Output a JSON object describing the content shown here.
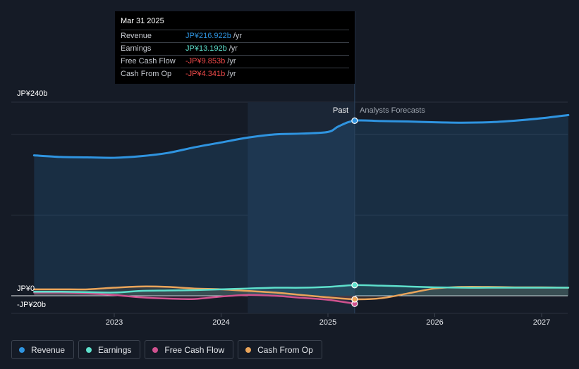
{
  "chart_data": {
    "type": "line",
    "y_top_label": "JP¥240b",
    "y_zero_label": "JP¥0",
    "y_neg_label": "-JP¥20b",
    "ylim": [
      -20,
      240
    ],
    "x_ticks": [
      "2023",
      "2024",
      "2025",
      "2026",
      "2027"
    ],
    "past_label": "Past",
    "forecast_label": "Analysts Forecasts",
    "divider_x": 2025.25,
    "shade_start_x": 2024.25,
    "series": [
      {
        "name": "Revenue",
        "color": "#2f94e0",
        "x": [
          2022.25,
          2022.5,
          2022.75,
          2023.0,
          2023.25,
          2023.5,
          2023.75,
          2024.0,
          2024.25,
          2024.5,
          2024.75,
          2025.0,
          2025.1,
          2025.25,
          2025.5,
          2025.75,
          2026.0,
          2026.25,
          2026.5,
          2026.75,
          2027.0,
          2027.25
        ],
        "values": [
          174,
          172,
          171.5,
          171,
          173,
          177,
          184,
          190,
          196,
          200,
          201,
          203,
          210,
          217,
          216.5,
          216,
          215,
          214.5,
          215,
          217,
          220,
          224
        ]
      },
      {
        "name": "Earnings",
        "color": "#5ee0cc",
        "x": [
          2022.25,
          2022.5,
          2022.75,
          2023.0,
          2023.25,
          2023.5,
          2023.75,
          2024.0,
          2024.25,
          2024.5,
          2024.75,
          2025.0,
          2025.25,
          2025.5,
          2025.75,
          2026.0,
          2026.25,
          2026.5,
          2026.75,
          2027.0,
          2027.25
        ],
        "values": [
          5,
          5,
          4.5,
          4,
          6,
          6.5,
          7,
          8,
          9,
          10,
          10,
          11,
          13.192,
          12.5,
          11.5,
          10.5,
          10,
          10,
          10,
          10,
          10
        ]
      },
      {
        "name": "Free Cash Flow",
        "color": "#d0528f",
        "x": [
          2022.25,
          2022.5,
          2022.75,
          2023.0,
          2023.25,
          2023.5,
          2023.75,
          2024.0,
          2024.25,
          2024.5,
          2024.75,
          2025.0,
          2025.25
        ],
        "values": [
          4,
          4,
          3,
          1,
          -2,
          -3.5,
          -4,
          -1,
          1,
          0,
          -2.5,
          -5,
          -9.853
        ]
      },
      {
        "name": "Cash From Op",
        "color": "#e9a45a",
        "x": [
          2022.25,
          2022.5,
          2022.75,
          2023.0,
          2023.25,
          2023.5,
          2023.75,
          2024.0,
          2024.25,
          2024.5,
          2024.75,
          2025.0,
          2025.25,
          2025.5,
          2025.75,
          2026.0,
          2026.25,
          2026.5,
          2026.75,
          2027.0,
          2027.25
        ],
        "values": [
          8,
          8,
          8,
          10,
          11.5,
          11,
          9,
          8,
          6,
          4,
          1,
          -2,
          -4.341,
          -3,
          3,
          9,
          11,
          11,
          10.5,
          10.5,
          10
        ]
      }
    ],
    "highlight_x": 2025.25
  },
  "tooltip": {
    "date": "Mar 31 2025",
    "rows": [
      {
        "label": "Revenue",
        "value": "JP¥216.922b",
        "unit": "/yr",
        "color": "#2f94e0"
      },
      {
        "label": "Earnings",
        "value": "JP¥13.192b",
        "unit": "/yr",
        "color": "#5ee0cc"
      },
      {
        "label": "Free Cash Flow",
        "value": "-JP¥9.853b",
        "unit": "/yr",
        "color": "#f04a4a"
      },
      {
        "label": "Cash From Op",
        "value": "-JP¥4.341b",
        "unit": "/yr",
        "color": "#f04a4a"
      }
    ]
  },
  "legend": [
    {
      "label": "Revenue",
      "color": "#2f94e0"
    },
    {
      "label": "Earnings",
      "color": "#5ee0cc"
    },
    {
      "label": "Free Cash Flow",
      "color": "#d0528f"
    },
    {
      "label": "Cash From Op",
      "color": "#e9a45a"
    }
  ]
}
